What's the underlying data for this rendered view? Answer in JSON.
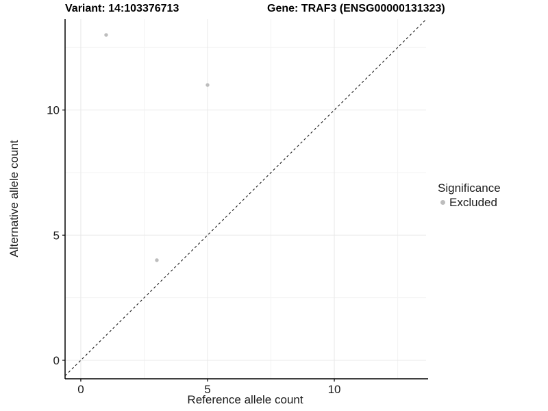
{
  "figure": {
    "title_variant": "Variant: 14:103376713",
    "title_gene": "Gene: TRAF3 (ENSG00000131323)"
  },
  "axes": {
    "x_label": "Reference allele count",
    "y_label": "Alternative allele count"
  },
  "legend": {
    "title": "Significance",
    "items": [
      {
        "label": "Excluded",
        "color": "#bdbdbd"
      }
    ]
  },
  "chart_data": {
    "type": "scatter",
    "title": "Variant: 14:103376713 / Gene: TRAF3 (ENSG00000131323)",
    "xlabel": "Reference allele count",
    "ylabel": "Alternative allele count",
    "series": [
      {
        "name": "Excluded",
        "color": "#bdbdbd",
        "points": [
          {
            "x": 1,
            "y": 13
          },
          {
            "x": 5,
            "y": 11
          },
          {
            "x": 3,
            "y": 4
          }
        ]
      }
    ],
    "identity_line": {
      "equation": "y = x",
      "style": "dashed",
      "color": "#1a1a1a"
    },
    "xlim": [
      -0.62,
      13.62
    ],
    "ylim": [
      -0.74,
      13.63
    ],
    "x_ticks": [
      0,
      5,
      10
    ],
    "y_ticks": [
      0,
      5,
      10
    ],
    "x_minor_ticks": [
      2.5,
      7.5,
      12.5
    ],
    "y_minor_ticks": [
      2.5,
      7.5,
      12.5
    ],
    "grid": true,
    "legend_position": "right",
    "colors": {
      "point": "#bdbdbd",
      "major_grid": "#e8e8e8",
      "minor_grid": "#f3f3f3",
      "axis_line": "#000000",
      "tick_label": "#1a1a1a"
    }
  }
}
